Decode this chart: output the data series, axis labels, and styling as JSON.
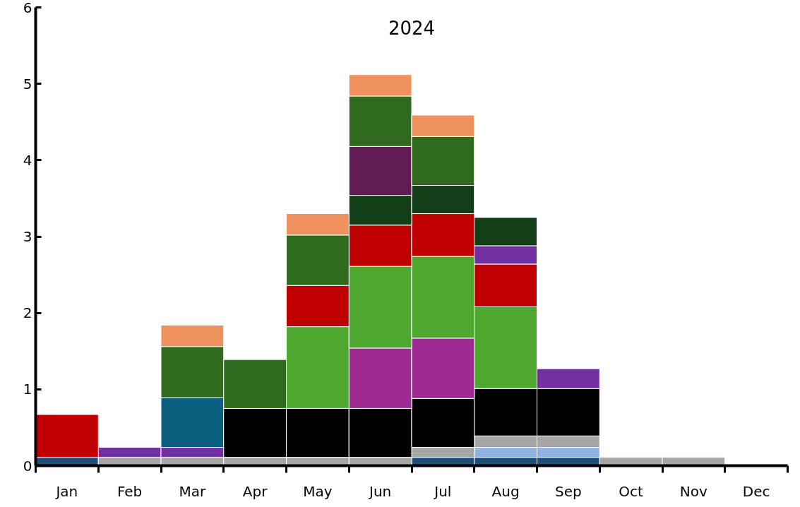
{
  "chart_data": {
    "type": "bar",
    "stacked": true,
    "title": "2024",
    "categories": [
      "Jan",
      "Feb",
      "Mar",
      "Apr",
      "May",
      "Jun",
      "Jul",
      "Aug",
      "Sep",
      "Oct",
      "Nov",
      "Dec"
    ],
    "ylim": [
      0,
      6
    ],
    "yticks": [
      0,
      1,
      2,
      3,
      4,
      5,
      6
    ],
    "grid": false,
    "series": [
      {
        "color": "#1f4e79",
        "values": [
          0.11,
          null,
          null,
          null,
          null,
          null,
          0.11,
          0.11,
          0.11,
          null,
          null,
          null
        ]
      },
      {
        "color": "#8eb4e3",
        "values": [
          null,
          null,
          null,
          null,
          null,
          null,
          null,
          0.13,
          0.13,
          null,
          null,
          null
        ]
      },
      {
        "color": "#a6a6a6",
        "values": [
          null,
          0.11,
          0.11,
          0.11,
          0.11,
          0.11,
          0.13,
          0.15,
          0.15,
          0.11,
          0.11,
          null
        ]
      },
      {
        "color": "#7030a0",
        "values": [
          null,
          0.13,
          0.13,
          null,
          null,
          null,
          null,
          null,
          null,
          null,
          null,
          null
        ]
      },
      {
        "color": "#0b5f7f",
        "values": [
          null,
          null,
          0.65,
          null,
          null,
          null,
          null,
          null,
          null,
          null,
          null,
          null
        ]
      },
      {
        "color": "#000000",
        "values": [
          null,
          null,
          null,
          0.64,
          0.64,
          0.64,
          0.64,
          0.62,
          0.62,
          null,
          null,
          null
        ]
      },
      {
        "color": "#9e2a92",
        "values": [
          null,
          null,
          null,
          null,
          null,
          0.79,
          0.79,
          null,
          null,
          null,
          null,
          null
        ]
      },
      {
        "color": "#4ea72e",
        "values": [
          null,
          null,
          null,
          null,
          1.07,
          1.07,
          1.07,
          1.07,
          null,
          null,
          null,
          null
        ]
      },
      {
        "color": "#c00000",
        "values": [
          0.56,
          null,
          null,
          null,
          0.54,
          0.54,
          0.56,
          0.56,
          null,
          null,
          null,
          null
        ]
      },
      {
        "color": "#7030a0",
        "values": [
          null,
          null,
          null,
          null,
          null,
          null,
          null,
          0.24,
          0.26,
          null,
          null,
          null
        ]
      },
      {
        "color": "#133f18",
        "values": [
          null,
          null,
          null,
          null,
          null,
          0.39,
          0.37,
          0.37,
          null,
          null,
          null,
          null
        ]
      },
      {
        "color": "#611b55",
        "values": [
          null,
          null,
          null,
          null,
          null,
          0.64,
          null,
          null,
          null,
          null,
          null,
          null
        ]
      },
      {
        "color": "#2f6a1e",
        "values": [
          null,
          null,
          0.67,
          0.64,
          0.66,
          0.66,
          0.64,
          null,
          null,
          null,
          null,
          null
        ]
      },
      {
        "color": "#ee915e",
        "values": [
          null,
          null,
          0.28,
          null,
          0.28,
          0.28,
          0.28,
          null,
          null,
          null,
          null,
          null
        ]
      }
    ]
  }
}
